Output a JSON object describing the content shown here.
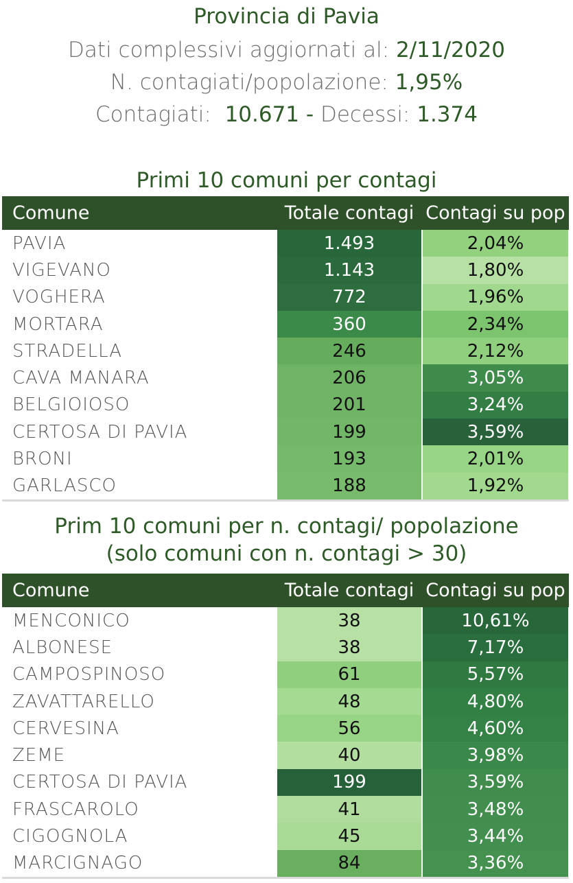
{
  "header": {
    "title": "Provincia di Pavia",
    "updated_label": "Dati complessivi aggiornati al: ",
    "updated_value": "2/11/2020",
    "ratio_label": "N. contagiati/popolazione: ",
    "ratio_value": "1,95%",
    "cases_label": "Contagiati:  ",
    "cases_value": "10.671",
    "separator": " - ",
    "deaths_label": "Decessi: ",
    "deaths_value": "1.374"
  },
  "table1": {
    "title": "Primi 10 comuni per contagi",
    "columns": [
      "Comune",
      "Totale contagi",
      "Contagi su pop"
    ],
    "rows": [
      {
        "name": "PAVIA",
        "total": "1.493",
        "pct": "2,04%",
        "total_bg": "#27673a",
        "total_fg": "#ffffff",
        "pct_bg": "#93d17f",
        "pct_fg": "#111111"
      },
      {
        "name": "VIGEVANO",
        "total": "1.143",
        "pct": "1,80%",
        "total_bg": "#2a6a3c",
        "total_fg": "#ffffff",
        "pct_bg": "#b6e0a4",
        "pct_fg": "#111111"
      },
      {
        "name": "VOGHERA",
        "total": "772",
        "pct": "1,96%",
        "total_bg": "#2d6d3e",
        "total_fg": "#ffffff",
        "pct_bg": "#a0d88d",
        "pct_fg": "#111111"
      },
      {
        "name": "MORTARA",
        "total": "360",
        "pct": "2,34%",
        "total_bg": "#3c8a4a",
        "total_fg": "#ffffff",
        "pct_bg": "#7cc46d",
        "pct_fg": "#111111"
      },
      {
        "name": "STRADELLA",
        "total": "246",
        "pct": "2,12%",
        "total_bg": "#65ad5c",
        "total_fg": "#111111",
        "pct_bg": "#8fcf7d",
        "pct_fg": "#111111"
      },
      {
        "name": "CAVA MANARA",
        "total": "206",
        "pct": "3,05%",
        "total_bg": "#6fb465",
        "total_fg": "#111111",
        "pct_bg": "#3e8b4b",
        "pct_fg": "#ffffff"
      },
      {
        "name": "BELGIOIOSO",
        "total": "201",
        "pct": "3,24%",
        "total_bg": "#70b566",
        "total_fg": "#111111",
        "pct_bg": "#327e44",
        "pct_fg": "#ffffff"
      },
      {
        "name": "CERTOSA DI PAVIA",
        "total": "199",
        "pct": "3,59%",
        "total_bg": "#72b767",
        "total_fg": "#111111",
        "pct_bg": "#28613a",
        "pct_fg": "#ffffff"
      },
      {
        "name": "BRONI",
        "total": "193",
        "pct": "2,01%",
        "total_bg": "#75b96a",
        "total_fg": "#111111",
        "pct_bg": "#98d485",
        "pct_fg": "#111111"
      },
      {
        "name": "GARLASCO",
        "total": "188",
        "pct": "1,92%",
        "total_bg": "#78bb6c",
        "total_fg": "#111111",
        "pct_bg": "#a2d98f",
        "pct_fg": "#111111"
      }
    ]
  },
  "table2": {
    "title_line1": "Prim 10 comuni per n. contagi/ popolazione",
    "title_line2": "(solo comuni con n. contagi > 30)",
    "columns": [
      "Comune",
      "Totale contagi",
      "Contagi su pop"
    ],
    "rows": [
      {
        "name": "MENCONICO",
        "total": "38",
        "pct": "10,61%",
        "total_bg": "#b6e0a4",
        "total_fg": "#111111",
        "pct_bg": "#27673a",
        "pct_fg": "#ffffff"
      },
      {
        "name": "ALBONESE",
        "total": "38",
        "pct": "7,17%",
        "total_bg": "#b6e0a4",
        "total_fg": "#111111",
        "pct_bg": "#2b6e3e",
        "pct_fg": "#ffffff"
      },
      {
        "name": "CAMPOSPINOSO",
        "total": "61",
        "pct": "5,57%",
        "total_bg": "#8fcf7d",
        "total_fg": "#111111",
        "pct_bg": "#307a42",
        "pct_fg": "#ffffff"
      },
      {
        "name": "ZAVATTARELLO",
        "total": "48",
        "pct": "4,80%",
        "total_bg": "#a4da92",
        "total_fg": "#111111",
        "pct_bg": "#338045",
        "pct_fg": "#ffffff"
      },
      {
        "name": "CERVESINA",
        "total": "56",
        "pct": "4,60%",
        "total_bg": "#98d485",
        "total_fg": "#111111",
        "pct_bg": "#358247",
        "pct_fg": "#ffffff"
      },
      {
        "name": "ZEME",
        "total": "40",
        "pct": "3,98%",
        "total_bg": "#b2de9f",
        "total_fg": "#111111",
        "pct_bg": "#3a884a",
        "pct_fg": "#ffffff"
      },
      {
        "name": "CERTOSA DI PAVIA",
        "total": "199",
        "pct": "3,59%",
        "total_bg": "#27613a",
        "total_fg": "#ffffff",
        "pct_bg": "#3f8c4c",
        "pct_fg": "#ffffff"
      },
      {
        "name": "FRASCAROLO",
        "total": "41",
        "pct": "3,48%",
        "total_bg": "#b0dd9d",
        "total_fg": "#111111",
        "pct_bg": "#418e4e",
        "pct_fg": "#ffffff"
      },
      {
        "name": "CIGOGNOLA",
        "total": "45",
        "pct": "3,44%",
        "total_bg": "#a9db96",
        "total_fg": "#111111",
        "pct_bg": "#438f4f",
        "pct_fg": "#ffffff"
      },
      {
        "name": "MARCIGNAGO",
        "total": "84",
        "pct": "3,36%",
        "total_bg": "#6aaf60",
        "total_fg": "#111111",
        "pct_bg": "#459150",
        "pct_fg": "#ffffff"
      }
    ]
  }
}
